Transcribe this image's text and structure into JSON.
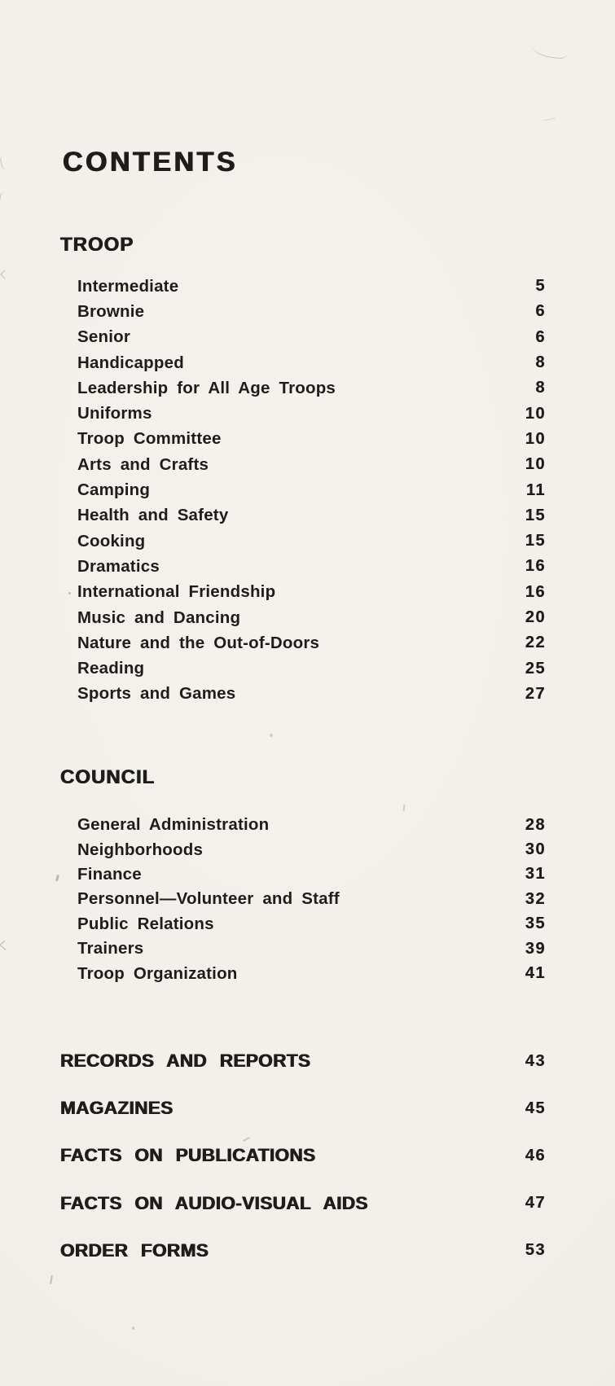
{
  "page": {
    "title": "CONTENTS",
    "sections": [
      {
        "heading": "TROOP",
        "items": [
          {
            "label": "Intermediate",
            "page": "5"
          },
          {
            "label": "Brownie",
            "page": "6"
          },
          {
            "label": "Senior",
            "page": "6"
          },
          {
            "label": "Handicapped",
            "page": "8"
          },
          {
            "label": "Leadership for All Age Troops",
            "page": "8"
          },
          {
            "label": "Uniforms",
            "page": "10"
          },
          {
            "label": "Troop Committee",
            "page": "10"
          },
          {
            "label": "Arts and Crafts",
            "page": "10"
          },
          {
            "label": "Camping",
            "page": "11"
          },
          {
            "label": "Health and Safety",
            "page": "15"
          },
          {
            "label": "Cooking",
            "page": "15"
          },
          {
            "label": "Dramatics",
            "page": "16"
          },
          {
            "label": "International Friendship",
            "page": "16"
          },
          {
            "label": "Music and Dancing",
            "page": "20"
          },
          {
            "label": "Nature and the Out-of-Doors",
            "page": "22"
          },
          {
            "label": "Reading",
            "page": "25"
          },
          {
            "label": "Sports and Games",
            "page": "27"
          }
        ]
      },
      {
        "heading": "COUNCIL",
        "items": [
          {
            "label": "General Administration",
            "page": "28"
          },
          {
            "label": "Neighborhoods",
            "page": "30"
          },
          {
            "label": "Finance",
            "page": "31"
          },
          {
            "label": "Personnel—Volunteer and Staff",
            "page": "32"
          },
          {
            "label": "Public Relations",
            "page": "35"
          },
          {
            "label": "Trainers",
            "page": "39"
          },
          {
            "label": "Troop Organization",
            "page": "41"
          }
        ]
      }
    ],
    "major_entries": [
      {
        "label": "RECORDS AND REPORTS",
        "page": "43"
      },
      {
        "label": "MAGAZINES",
        "page": "45"
      },
      {
        "label": "FACTS ON PUBLICATIONS",
        "page": "46"
      },
      {
        "label": "FACTS ON AUDIO-VISUAL AIDS",
        "page": "47"
      },
      {
        "label": "ORDER FORMS",
        "page": "53"
      }
    ],
    "colors": {
      "paper": "#f1efe9",
      "ink": "#1e1d1b"
    }
  }
}
